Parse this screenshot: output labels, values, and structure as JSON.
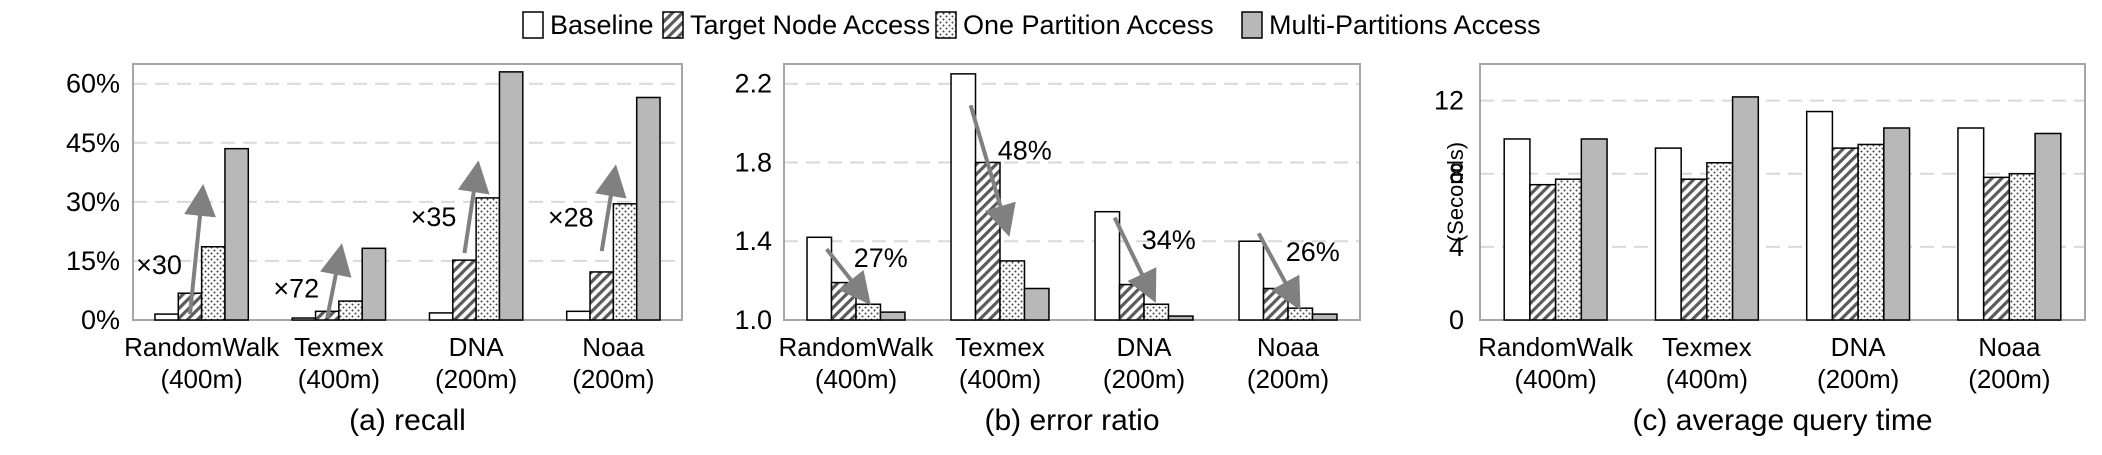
{
  "legend": {
    "items": [
      {
        "label": "Baseline",
        "pattern": "baseline"
      },
      {
        "label": "Target Node Access",
        "pattern": "hatch"
      },
      {
        "label": "One Partition Access",
        "pattern": "dots"
      },
      {
        "label": "Multi-Partitions Access",
        "pattern": "gray"
      }
    ]
  },
  "colors": {
    "axis": "#a6a6a6",
    "grid": "#d9d9d9",
    "bar_outline": "#000000",
    "gray_fill": "#b8b8b8",
    "arrow": "#808080"
  },
  "chart_data": [
    {
      "type": "bar",
      "caption": "(a) recall",
      "categories": [
        [
          "RandomWalk",
          "(400m)"
        ],
        [
          "Texmex",
          "(400m)"
        ],
        [
          "DNA",
          "(200m)"
        ],
        [
          "Noaa",
          "(200m)"
        ]
      ],
      "series": [
        {
          "name": "Baseline",
          "values": [
            1.5,
            0.5,
            1.8,
            2.2
          ]
        },
        {
          "name": "Target Node Access",
          "values": [
            6.8,
            2.2,
            15.2,
            12.2
          ]
        },
        {
          "name": "One Partition Access",
          "values": [
            18.6,
            4.8,
            31.0,
            29.5
          ]
        },
        {
          "name": "Multi-Partitions Access",
          "values": [
            43.5,
            18.2,
            63.0,
            56.5
          ]
        }
      ],
      "ylim": [
        0,
        65
      ],
      "yticks": [
        0,
        15,
        30,
        45,
        60
      ],
      "ytick_labels": [
        "0%",
        "15%",
        "30%",
        "45%",
        "60%"
      ],
      "ylabel": "",
      "annotations": [
        {
          "text": "×30",
          "arrow_from": [
            1.5,
            1.5
          ],
          "arrow_to": [
            2.0,
            30.5
          ]
        },
        {
          "text": "×72",
          "arrow_from": [
            1.5,
            0.5
          ],
          "arrow_to": [
            2.0,
            15.5
          ]
        },
        {
          "text": "×35",
          "arrow_from": [
            1.5,
            17.0
          ],
          "arrow_to": [
            2.0,
            36.5
          ]
        },
        {
          "text": "×28",
          "arrow_from": [
            1.5,
            17.5
          ],
          "arrow_to": [
            2.0,
            35.5
          ]
        }
      ]
    },
    {
      "type": "bar",
      "caption": "(b) error ratio",
      "categories": [
        [
          "RandomWalk",
          "(400m)"
        ],
        [
          "Texmex",
          "(400m)"
        ],
        [
          "DNA",
          "(200m)"
        ],
        [
          "Noaa",
          "(200m)"
        ]
      ],
      "series": [
        {
          "name": "Baseline",
          "values": [
            1.42,
            2.25,
            1.55,
            1.4
          ]
        },
        {
          "name": "Target Node Access",
          "values": [
            1.19,
            1.8,
            1.18,
            1.16
          ]
        },
        {
          "name": "One Partition Access",
          "values": [
            1.08,
            1.3,
            1.08,
            1.06
          ]
        },
        {
          "name": "Multi-Partitions Access",
          "values": [
            1.04,
            1.16,
            1.02,
            1.03
          ]
        }
      ],
      "ylim": [
        1.0,
        2.3
      ],
      "yticks": [
        1.0,
        1.4,
        1.8,
        2.2
      ],
      "ytick_labels": [
        "1.0",
        "1.4",
        "1.8",
        "2.2"
      ],
      "ylabel": "",
      "annotations": [
        {
          "text": "27%",
          "arrow_from": [
            0.8,
            1.36
          ],
          "arrow_to": [
            2.2,
            1.14
          ]
        },
        {
          "text": "48%",
          "arrow_from": [
            0.8,
            2.09
          ],
          "arrow_to": [
            2.2,
            1.5
          ]
        },
        {
          "text": "34%",
          "arrow_from": [
            0.8,
            1.52
          ],
          "arrow_to": [
            2.2,
            1.16
          ]
        },
        {
          "text": "26%",
          "arrow_from": [
            0.8,
            1.44
          ],
          "arrow_to": [
            2.2,
            1.12
          ]
        }
      ]
    },
    {
      "type": "bar",
      "caption": "(c) average query time",
      "categories": [
        [
          "RandomWalk",
          "(400m)"
        ],
        [
          "Texmex",
          "(400m)"
        ],
        [
          "DNA",
          "(200m)"
        ],
        [
          "Noaa",
          "(200m)"
        ]
      ],
      "series": [
        {
          "name": "Baseline",
          "values": [
            9.9,
            9.4,
            11.4,
            10.5
          ]
        },
        {
          "name": "Target Node Access",
          "values": [
            7.4,
            7.7,
            9.4,
            7.8
          ]
        },
        {
          "name": "One Partition Access",
          "values": [
            7.7,
            8.6,
            9.6,
            8.0
          ]
        },
        {
          "name": "Multi-Partitions Access",
          "values": [
            9.9,
            12.2,
            10.5,
            10.2
          ]
        }
      ],
      "ylim": [
        0,
        14
      ],
      "yticks": [
        0,
        4,
        8,
        12
      ],
      "ytick_labels": [
        "0",
        "4",
        "8",
        "12"
      ],
      "ylabel": "(Seconds)",
      "annotations": []
    }
  ]
}
